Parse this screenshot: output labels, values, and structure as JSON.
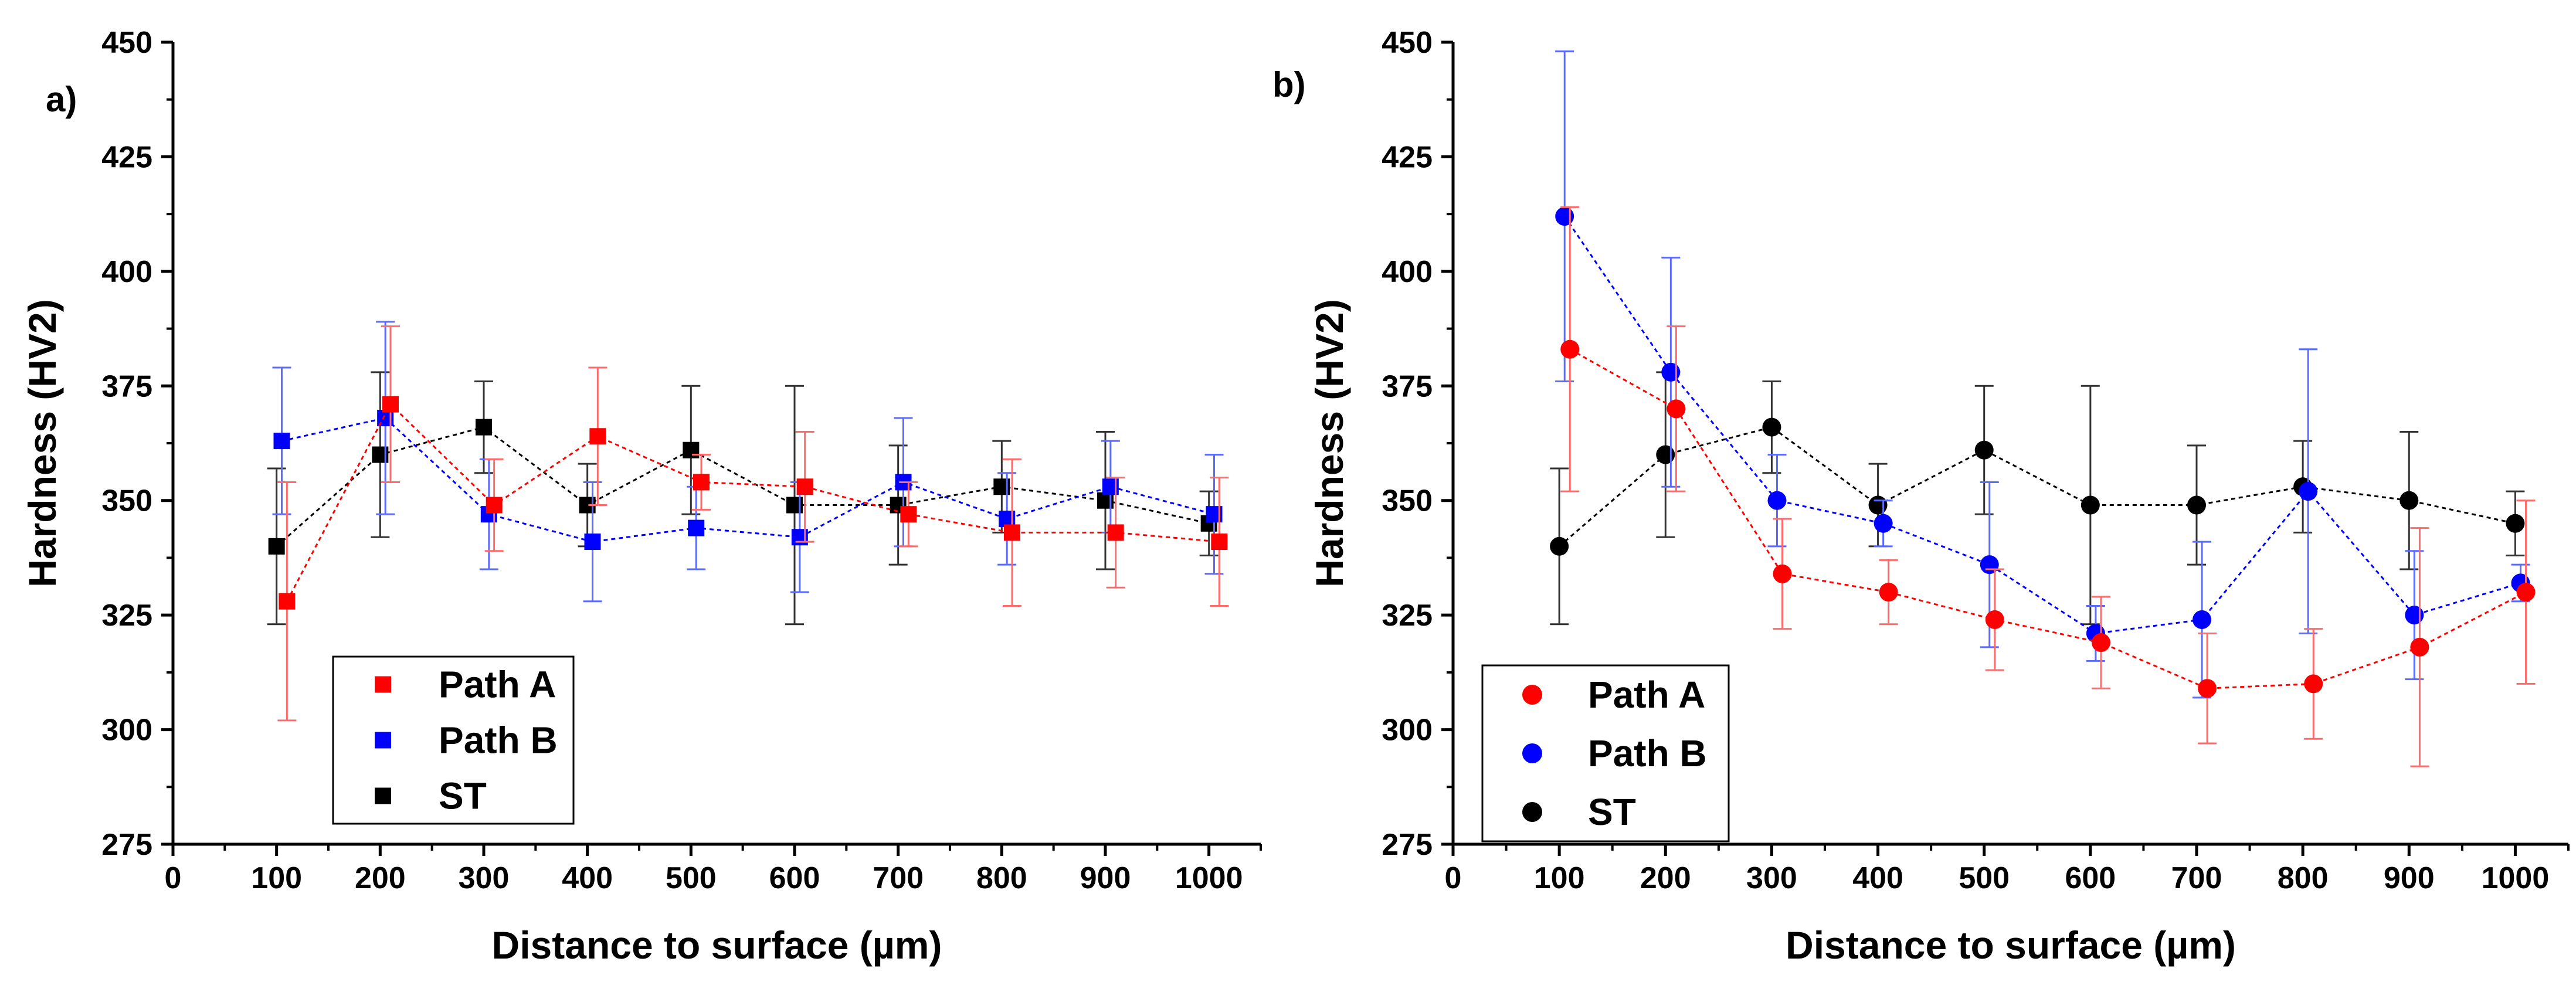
{
  "chart_data": [
    {
      "panel_label": "a)",
      "type": "scatter",
      "marker": "square",
      "xlabel": "Distance to surface (µm)",
      "ylabel": "Hardness (HV2)",
      "xlim": [
        0,
        1050
      ],
      "ylim": [
        275,
        450
      ],
      "xticks": [
        0,
        100,
        200,
        300,
        400,
        500,
        600,
        700,
        800,
        900,
        1000
      ],
      "yticks": [
        275,
        300,
        325,
        350,
        375,
        400,
        425,
        450
      ],
      "legend_position": "bottom-left",
      "series": [
        {
          "name": "Path A",
          "color": "#ff0000",
          "x": [
            110,
            210,
            310,
            410,
            510,
            610,
            710,
            810,
            910,
            1010
          ],
          "y": [
            328,
            371,
            349,
            364,
            354,
            353,
            347,
            343,
            343,
            341
          ],
          "err": [
            26,
            17,
            10,
            15,
            6,
            12,
            7,
            16,
            12,
            14
          ]
        },
        {
          "name": "Path B",
          "color": "#0000ff",
          "x": [
            105,
            205,
            305,
            405,
            505,
            605,
            705,
            805,
            905,
            1005
          ],
          "y": [
            363,
            368,
            347,
            341,
            344,
            342,
            354,
            346,
            353,
            347
          ],
          "err": [
            16,
            21,
            12,
            13,
            9,
            12,
            14,
            10,
            10,
            13
          ]
        },
        {
          "name": "ST",
          "color": "#000000",
          "x": [
            100,
            200,
            300,
            400,
            500,
            600,
            700,
            800,
            900,
            1000
          ],
          "y": [
            340,
            360,
            366,
            349,
            361,
            349,
            349,
            353,
            350,
            345
          ],
          "err": [
            17,
            18,
            10,
            9,
            14,
            26,
            13,
            10,
            15,
            7
          ]
        }
      ]
    },
    {
      "panel_label": "b)",
      "type": "scatter",
      "marker": "circle",
      "xlabel": "Distance to surface (µm)",
      "ylabel": "Hardness (HV2)",
      "xlim": [
        0,
        1050
      ],
      "ylim": [
        275,
        450
      ],
      "xticks": [
        0,
        100,
        200,
        300,
        400,
        500,
        600,
        700,
        800,
        900,
        1000
      ],
      "yticks": [
        275,
        300,
        325,
        350,
        375,
        400,
        425,
        450
      ],
      "legend_position": "bottom-left",
      "series": [
        {
          "name": "Path A",
          "color": "#ff0000",
          "x": [
            110,
            210,
            310,
            410,
            510,
            610,
            710,
            810,
            910,
            1010
          ],
          "y": [
            383,
            370,
            334,
            330,
            324,
            319,
            309,
            310,
            318,
            330
          ],
          "err": [
            31,
            18,
            12,
            7,
            11,
            10,
            12,
            12,
            26,
            20
          ]
        },
        {
          "name": "Path B",
          "color": "#0000ff",
          "x": [
            105,
            205,
            305,
            405,
            505,
            605,
            705,
            805,
            905,
            1005
          ],
          "y": [
            412,
            378,
            350,
            345,
            336,
            321,
            324,
            352,
            325,
            332
          ],
          "err": [
            36,
            25,
            10,
            5,
            18,
            6,
            17,
            31,
            14,
            4
          ]
        },
        {
          "name": "ST",
          "color": "#000000",
          "x": [
            100,
            200,
            300,
            400,
            500,
            600,
            700,
            800,
            900,
            1000
          ],
          "y": [
            340,
            360,
            366,
            349,
            361,
            349,
            349,
            353,
            350,
            345
          ],
          "err": [
            17,
            18,
            10,
            9,
            14,
            26,
            13,
            10,
            15,
            7
          ]
        }
      ]
    }
  ]
}
